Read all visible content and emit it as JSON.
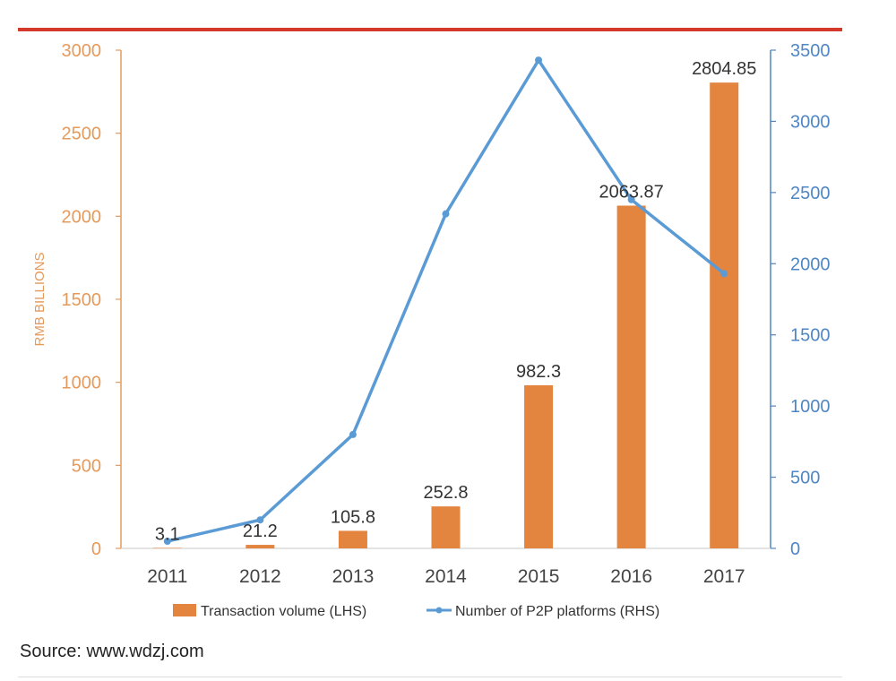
{
  "footer": {
    "source": "Source: www.wdzj.com"
  },
  "colors": {
    "bar": "#e3843f",
    "line": "#5b9bd5",
    "left_axis": "#e59a5c",
    "right_axis": "#4f86c4",
    "top_rule": "#d33a2c",
    "label": "#333333",
    "category": "#444444"
  },
  "chart_data": {
    "type": "bar",
    "categories": [
      "2011",
      "2012",
      "2013",
      "2014",
      "2015",
      "2016",
      "2017"
    ],
    "ylabel": "RMB BILLIONS",
    "ylim": [
      0,
      3000
    ],
    "y2lim": [
      0,
      3500
    ],
    "yticks": [
      "0",
      "500",
      "1000",
      "1500",
      "2000",
      "2500",
      "3000"
    ],
    "y2ticks": [
      "0",
      "500",
      "1000",
      "1500",
      "2000",
      "2500",
      "3000",
      "3500"
    ],
    "grid": false,
    "legend_position": "bottom",
    "series": [
      {
        "name": "Transaction volume (LHS)",
        "type": "bar",
        "axis": "left",
        "values": [
          3.1,
          21.2,
          105.8,
          252.8,
          982.3,
          2063.87,
          2804.85
        ],
        "labels": [
          "3.1",
          "21.2",
          "105.8",
          "252.8",
          "982.3",
          "2063.87",
          "2804.85"
        ]
      },
      {
        "name": "Number of P2P platforms (RHS)",
        "type": "line",
        "axis": "right",
        "values": [
          50,
          200,
          800,
          2350,
          3430,
          2450,
          1930
        ]
      }
    ]
  }
}
